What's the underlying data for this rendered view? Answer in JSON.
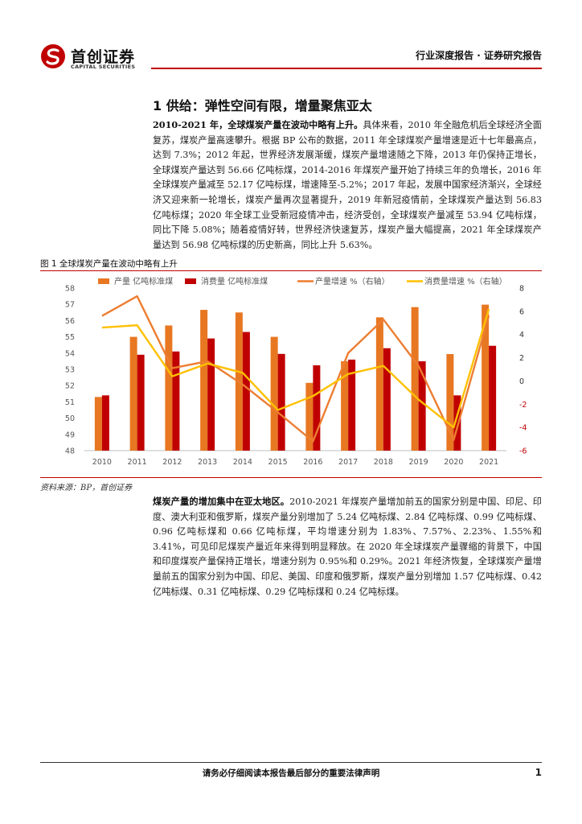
{
  "header": {
    "logo_cn": "首创证券",
    "logo_en": "CAPITAL SECURITIES",
    "report_type": "行业深度报告 · 证券研究报告",
    "accent": "#c00000"
  },
  "section": {
    "title": "1 供给：弹性空间有限，增量聚焦亚太"
  },
  "para1": {
    "lead": "2010-2021 年，全球煤炭产量在波动中略有上升。",
    "body": "具体来看，2010 年全融危机后全球经济全面复苏，煤炭产量高速攀升。根据 BP 公布的数据，2011 年全球煤炭产量增速是近十七年最高点，达到 7.3%；2012 年起，世界经济发展渐缓，煤炭产量增速随之下降，2013 年仍保持正增长，全球煤炭产量达到 56.66 亿吨标煤，2014-2016 年煤炭产量开始了持续三年的负增长，2016 年全球煤炭产量减至 52.17 亿吨标煤，增速降至-5.2%；2017 年起，发展中国家经济渐兴，全球经济又迎来新一轮增长，煤炭产量再次显著提升，2019 年新冠疫情前，全球煤炭产量达到 56.83 亿吨标煤；2020 年全球工业受新冠疫情冲击，经济受创，全球煤炭产量减至 53.94 亿吨标煤，同比下降 5.08%；随着疫情好转，世界经济快速复苏，煤炭产量大幅提高，2021 年全球煤炭产量达到 56.98 亿吨标煤的历史新高，同比上升 5.63%。"
  },
  "figure": {
    "caption": "图 1 全球煤炭产量在波动中略有上升",
    "source": "资料来源：BP，首创证券"
  },
  "chart_data": {
    "type": "bar",
    "categories": [
      "2010",
      "2011",
      "2012",
      "2013",
      "2014",
      "2015",
      "2016",
      "2017",
      "2018",
      "2019",
      "2020",
      "2021"
    ],
    "series": [
      {
        "name": "产量 亿吨标准煤",
        "kind": "bar",
        "axis": "left",
        "color": "#e87722",
        "values": [
          51.3,
          55.0,
          55.7,
          56.66,
          56.5,
          55.0,
          52.17,
          53.5,
          56.2,
          56.83,
          53.94,
          56.98
        ]
      },
      {
        "name": "消费量 亿吨标准煤",
        "kind": "bar",
        "axis": "left",
        "color": "#c00000",
        "values": [
          51.4,
          53.9,
          54.1,
          54.9,
          55.3,
          53.95,
          53.25,
          53.6,
          54.3,
          53.5,
          51.4,
          54.45
        ]
      },
      {
        "name": "产量增速 %（右轴）",
        "kind": "line",
        "axis": "right",
        "color": "#ed7d31",
        "values": [
          5.6,
          7.3,
          1.1,
          1.7,
          -0.3,
          -2.7,
          -5.2,
          2.4,
          5.3,
          1.3,
          -5.08,
          5.63
        ]
      },
      {
        "name": "消费量增速 %（右轴）",
        "kind": "line",
        "axis": "right",
        "color": "#ffc000",
        "values": [
          4.6,
          4.8,
          0.4,
          1.5,
          0.7,
          -2.5,
          -1.3,
          0.6,
          1.3,
          -1.6,
          -4.0,
          6.2
        ]
      }
    ],
    "ylim_left": [
      48,
      58
    ],
    "yticks_left": [
      48,
      49,
      50,
      51,
      52,
      53,
      54,
      55,
      56,
      57,
      58
    ],
    "ylim_right": [
      -6,
      8
    ],
    "yticks_right": [
      -6,
      -4,
      -2,
      0,
      2,
      4,
      6,
      8
    ],
    "right_tick_colors": {
      "positive": "#333333",
      "negative": "#c00000"
    },
    "legend_position": "top",
    "grid": false
  },
  "para2": {
    "lead": "煤炭产量的增加集中在亚太地区。",
    "body": "2010-2021 年煤炭产量增加前五的国家分别是中国、印尼、印度、澳大利亚和俄罗斯，煤炭产量分别增加了 5.24 亿吨标煤、2.84 亿吨标煤、0.99 亿吨标煤、0.96 亿吨标煤和 0.66 亿吨标煤，平均增速分别为 1.83%、7.57%、2.23%、1.55%和 3.41%，可见印尼煤炭产量近年来得到明显释放。在 2020 年全球煤炭产量骤缩的背景下，中国和印度煤炭产量保持正增长，增速分别为 0.95%和 0.29%。2021 年经济恢复，全球煤炭产量增量前五的国家分别为中国、印尼、美国、印度和俄罗斯，煤炭产量分别增加 1.57 亿吨标煤、0.42 亿吨标煤、0.31 亿吨标煤、0.29 亿吨标煤和 0.24 亿吨标煤。"
  },
  "footer": {
    "notice": "请务必仔细阅读本报告最后部分的重要法律声明",
    "page": "1"
  }
}
